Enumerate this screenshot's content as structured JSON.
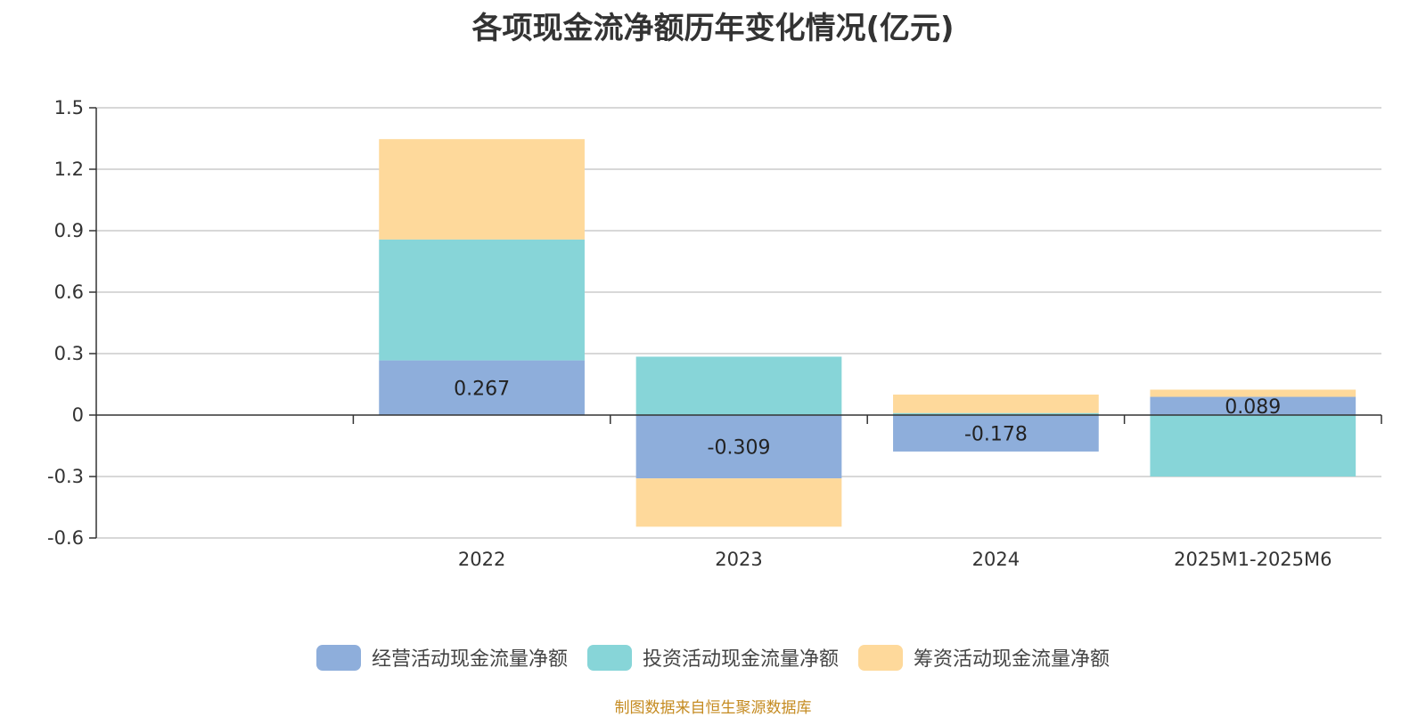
{
  "chart_data": {
    "type": "bar",
    "stacked": true,
    "title": "各项现金流净额历年变化情况(亿元)",
    "categories": [
      "2022",
      "2023",
      "2024",
      "2025M1-2025M6"
    ],
    "series": [
      {
        "name": "经营活动现金流量净额",
        "color": "#8eaedb",
        "values": [
          0.267,
          -0.309,
          -0.178,
          0.089
        ]
      },
      {
        "name": "投资活动现金流量净额",
        "color": "#87d5d8",
        "values": [
          0.59,
          0.285,
          0.01,
          -0.3
        ]
      },
      {
        "name": "筹资活动现金流量净额",
        "color": "#fed99b",
        "values": [
          0.49,
          -0.236,
          0.09,
          0.035
        ]
      }
    ],
    "data_labels": [
      "0.267",
      "-0.309",
      "-0.178",
      "0.089"
    ],
    "ylim": [
      -0.6,
      1.5
    ],
    "yticks": [
      "1.5",
      "1.2",
      "0.9",
      "0.6",
      "0.3",
      "0",
      "-0.3",
      "-0.6"
    ],
    "xlabel": "",
    "ylabel": "",
    "grid": true,
    "legend_position": "bottom"
  },
  "source": "制图数据来自恒生聚源数据库"
}
